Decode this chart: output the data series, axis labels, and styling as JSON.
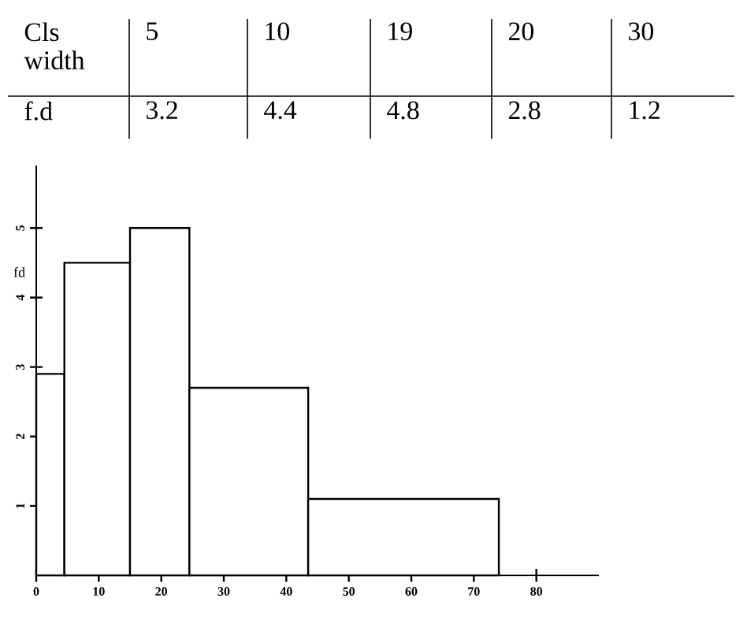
{
  "chart_data": {
    "type": "histogram",
    "ylabel": "fd",
    "bins": [
      0,
      4.5,
      15,
      24.5,
      43.5,
      74
    ],
    "values": [
      2.9,
      4.5,
      5.0,
      2.7,
      1.1
    ],
    "color": "#000000",
    "xlim": [
      0,
      90
    ],
    "ylim": [
      0,
      5.9
    ],
    "xticks": [
      0,
      10,
      20,
      30,
      40,
      50,
      60,
      70,
      80
    ],
    "yticks": [
      1,
      2,
      3,
      4,
      5
    ],
    "grid": false,
    "annotations": [
      "Cls width",
      "5",
      "10",
      "19",
      "20",
      "30",
      "f.d",
      "3.2",
      "4.4",
      "4.8",
      "2.8",
      "1.2"
    ]
  }
}
